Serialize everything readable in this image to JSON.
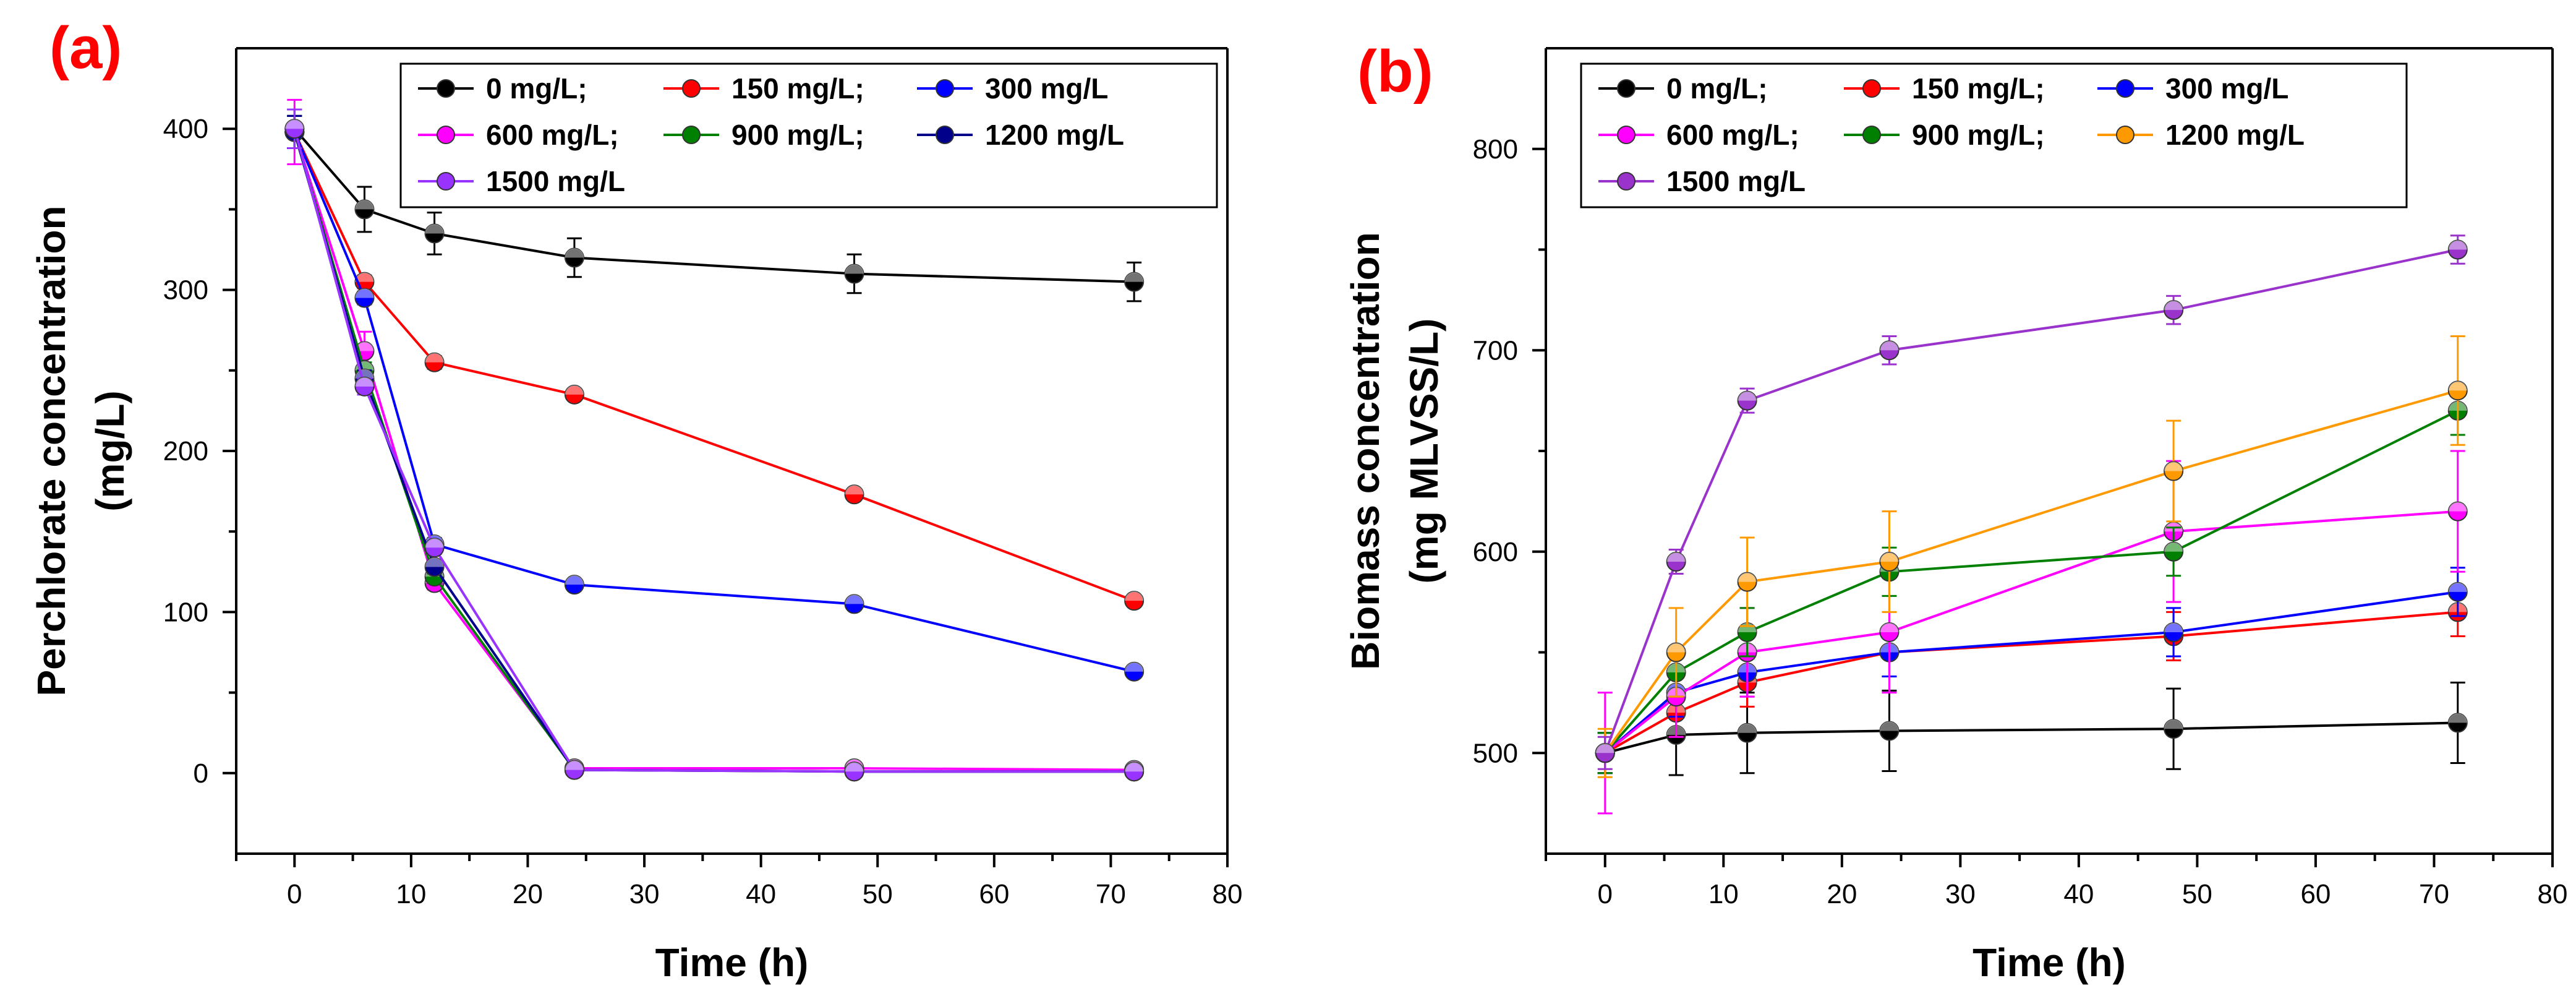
{
  "chart_data": [
    {
      "type": "line",
      "panel_label": "(a)",
      "xlabel": "Time (h)",
      "ylabel_lines": [
        "Perchlorate concentration",
        "(mg/L)"
      ],
      "xlim": [
        -5,
        80
      ],
      "ylim": [
        -50,
        450
      ],
      "xticks": [
        0,
        10,
        20,
        30,
        40,
        50,
        60,
        70,
        80
      ],
      "yticks": [
        0,
        100,
        200,
        300,
        400
      ],
      "legend_position": "top-right",
      "legend_rows": [
        [
          "0 mg/L;",
          "150 mg/L;",
          "300 mg/L"
        ],
        [
          "600 mg/L;",
          "900 mg/L;",
          "1200 mg/L"
        ],
        [
          "1500 mg/L"
        ]
      ],
      "x": [
        0,
        6,
        12,
        24,
        48,
        72
      ],
      "series": [
        {
          "name": "0 mg/L",
          "color": "#000000",
          "values": [
            400,
            350,
            335,
            320,
            310,
            305
          ],
          "errors": [
            12,
            14,
            13,
            12,
            12,
            12
          ]
        },
        {
          "name": "150 mg/L",
          "color": "#ff0000",
          "values": [
            398,
            305,
            255,
            235,
            173,
            107
          ],
          "errors": [
            10,
            4,
            4,
            3,
            3,
            3
          ]
        },
        {
          "name": "300 mg/L",
          "color": "#0000ff",
          "values": [
            398,
            295,
            142,
            117,
            105,
            63
          ],
          "errors": [
            10,
            4,
            4,
            3,
            3,
            3
          ]
        },
        {
          "name": "600 mg/L",
          "color": "#ff00ff",
          "values": [
            398,
            262,
            118,
            3,
            3,
            2
          ],
          "errors": [
            20,
            12,
            4,
            2,
            2,
            2
          ]
        },
        {
          "name": "900 mg/L",
          "color": "#008000",
          "values": [
            398,
            250,
            122,
            2,
            1,
            1
          ],
          "errors": [
            10,
            5,
            4,
            2,
            2,
            2
          ]
        },
        {
          "name": "1200 mg/L",
          "color": "#00008b",
          "values": [
            398,
            245,
            128,
            2,
            1,
            1
          ],
          "errors": [
            10,
            5,
            4,
            2,
            2,
            2
          ]
        },
        {
          "name": "1500 mg/L",
          "color": "#9933ff",
          "values": [
            400,
            240,
            140,
            2,
            1,
            1
          ],
          "errors": [
            12,
            5,
            4,
            2,
            2,
            2
          ]
        }
      ]
    },
    {
      "type": "line",
      "panel_label": "(b)",
      "xlabel": "Time (h)",
      "ylabel_lines": [
        "Biomass concentration",
        "(mg MLVSS/L)"
      ],
      "xlim": [
        -5,
        80
      ],
      "ylim": [
        450,
        850
      ],
      "xticks": [
        0,
        10,
        20,
        30,
        40,
        50,
        60,
        70,
        80
      ],
      "yticks": [
        500,
        600,
        700,
        800
      ],
      "legend_position": "top-left",
      "legend_rows": [
        [
          "0 mg/L;",
          "150 mg/L;",
          "300 mg/L"
        ],
        [
          "600 mg/L;",
          "900 mg/L;",
          "1200 mg/L"
        ],
        [
          "1500 mg/L"
        ]
      ],
      "x": [
        0,
        6,
        12,
        24,
        48,
        72
      ],
      "series": [
        {
          "name": "0 mg/L",
          "color": "#000000",
          "values": [
            500,
            509,
            510,
            511,
            512,
            515
          ],
          "errors": [
            10,
            20,
            20,
            20,
            20,
            20
          ]
        },
        {
          "name": "150 mg/L",
          "color": "#ff0000",
          "values": [
            500,
            520,
            535,
            550,
            558,
            570
          ],
          "errors": [
            10,
            12,
            12,
            12,
            12,
            12
          ]
        },
        {
          "name": "300 mg/L",
          "color": "#0000ff",
          "values": [
            500,
            530,
            540,
            550,
            560,
            580
          ],
          "errors": [
            10,
            12,
            12,
            12,
            12,
            12
          ]
        },
        {
          "name": "600 mg/L",
          "color": "#ff00ff",
          "values": [
            500,
            528,
            550,
            560,
            610,
            620
          ],
          "errors": [
            30,
            20,
            22,
            30,
            35,
            30
          ]
        },
        {
          "name": "900 mg/L",
          "color": "#008000",
          "values": [
            500,
            540,
            560,
            590,
            600,
            670
          ],
          "errors": [
            10,
            12,
            12,
            12,
            12,
            12
          ]
        },
        {
          "name": "1200 mg/L",
          "color": "#ff9900",
          "values": [
            500,
            550,
            585,
            595,
            640,
            680
          ],
          "errors": [
            12,
            22,
            22,
            25,
            25,
            27
          ]
        },
        {
          "name": "1500 mg/L",
          "color": "#9933cc",
          "values": [
            500,
            595,
            675,
            700,
            720,
            750
          ],
          "errors": [
            8,
            6,
            6,
            7,
            7,
            7
          ]
        }
      ]
    }
  ]
}
